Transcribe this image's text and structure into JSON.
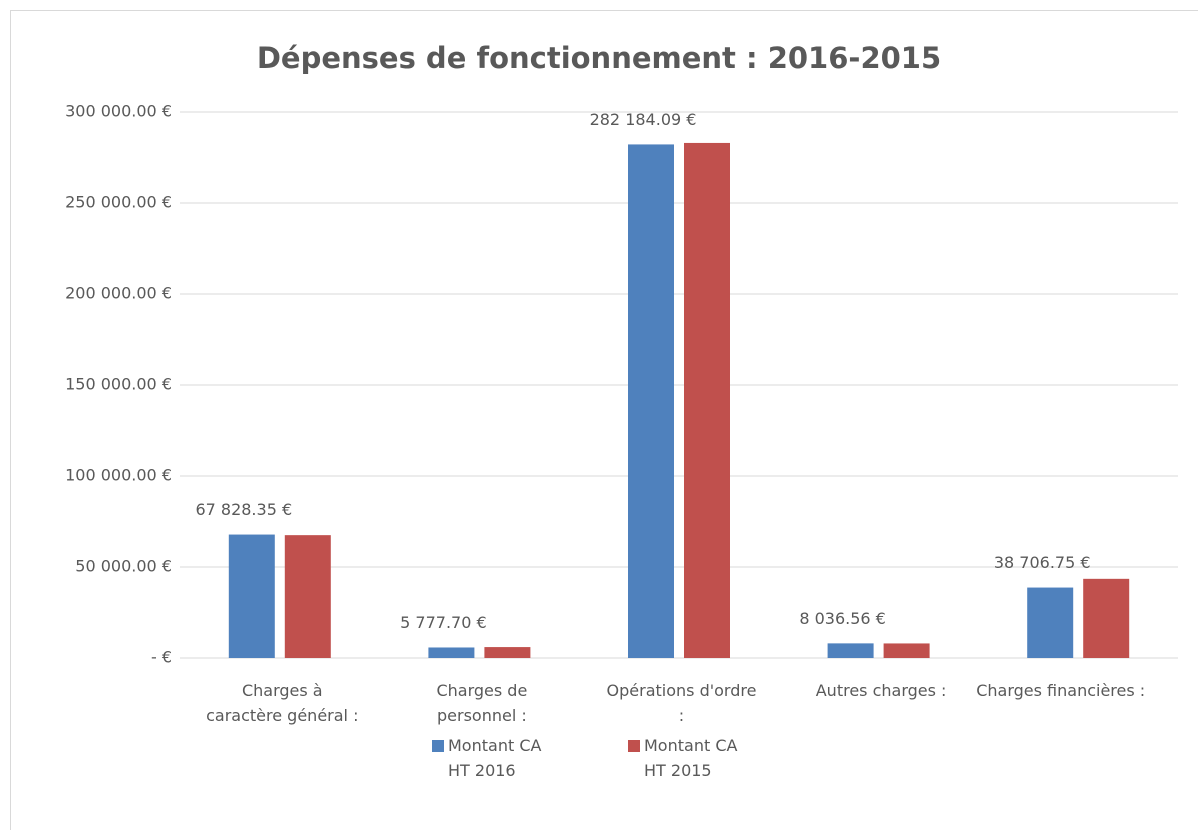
{
  "chart_data": {
    "type": "bar",
    "title": "Dépenses de fonctionnement : 2016-2015",
    "categories": [
      "Charges à caractère général :",
      "Charges de personnel :",
      "Opérations d'ordre :",
      "Autres charges :",
      "Charges financières :"
    ],
    "series": [
      {
        "name": "Montant CA HT 2016",
        "color": "#4f81bd",
        "values": [
          67828.35,
          5777.7,
          282184.09,
          8036.56,
          38706.75
        ],
        "value_labels": [
          "67 828.35 €",
          "5 777.70 €",
          "282 184.09 €",
          "8 036.56 €",
          "38 706.75 €"
        ]
      },
      {
        "name": "Montant CA HT 2015",
        "color": "#c0504d",
        "values": [
          67500,
          6000,
          283000,
          8000,
          43500
        ]
      }
    ],
    "ylim": [
      0,
      300000
    ],
    "yticks": [
      {
        "value": 0,
        "label": "-   €"
      },
      {
        "value": 50000,
        "label": "50 000.00 €"
      },
      {
        "value": 100000,
        "label": "100 000.00 €"
      },
      {
        "value": 150000,
        "label": "150 000.00 €"
      },
      {
        "value": 200000,
        "label": "200 000.00 €"
      },
      {
        "value": 250000,
        "label": "250 000.00 €"
      },
      {
        "value": 300000,
        "label": "300 000.00 €"
      }
    ],
    "grid": true,
    "legend": "bottom"
  }
}
